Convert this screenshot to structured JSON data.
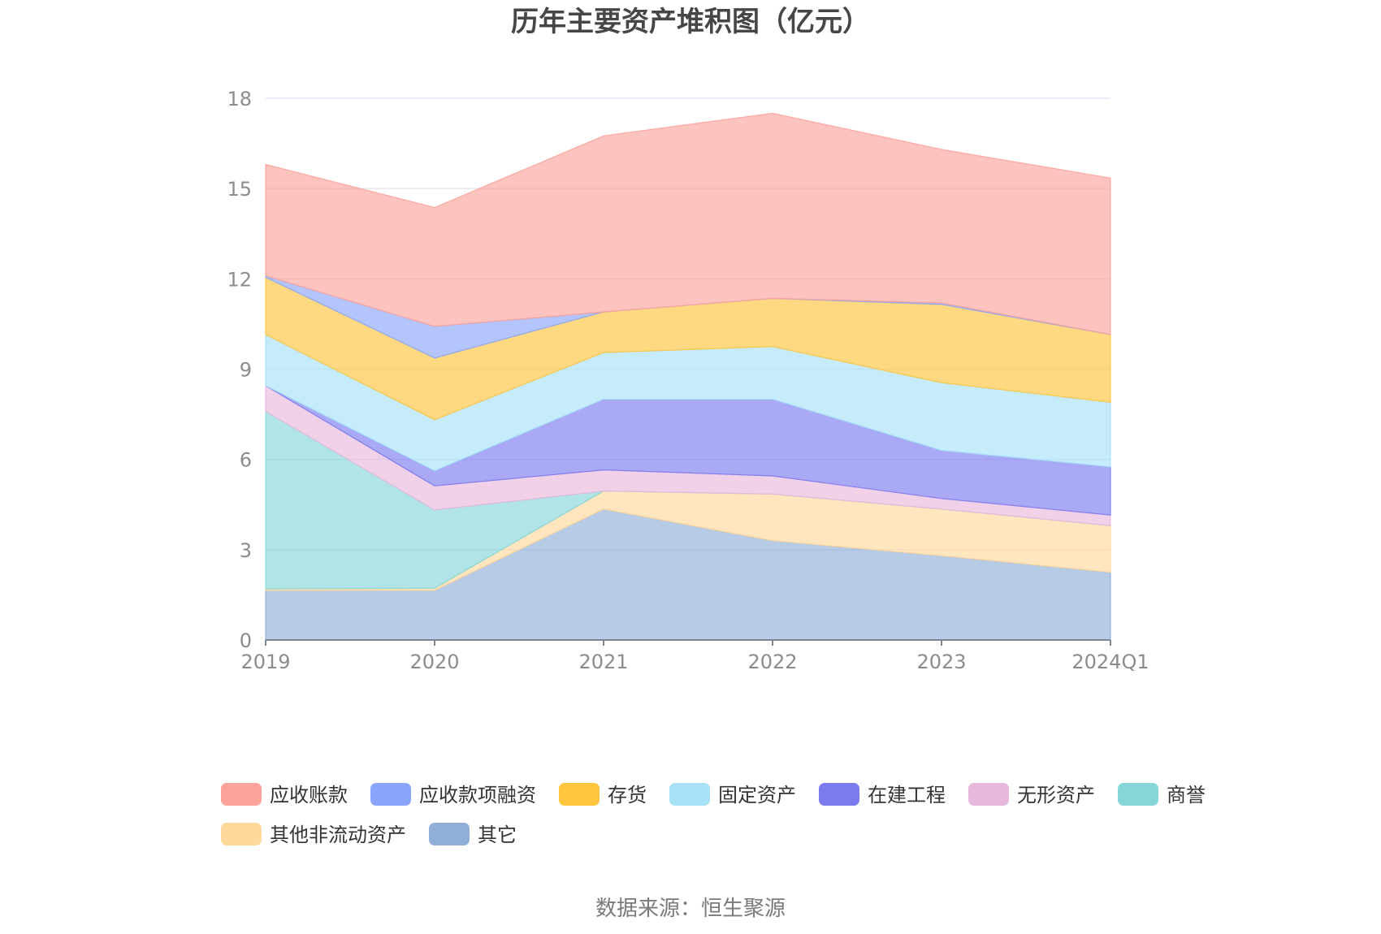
{
  "chart_data": {
    "type": "area",
    "stacked": true,
    "title": "历年主要资产堆积图（亿元）",
    "categories": [
      "2019",
      "2020",
      "2021",
      "2022",
      "2023",
      "2024Q1"
    ],
    "ylim": [
      0,
      18
    ],
    "yticks": [
      0,
      3,
      6,
      9,
      12,
      15,
      18
    ],
    "grid": true,
    "legend_position": "bottom",
    "series": [
      {
        "name": "其它",
        "color": "#91aed9",
        "values": [
          1.65,
          1.65,
          4.35,
          3.3,
          2.8,
          2.25
        ]
      },
      {
        "name": "其他非流动资产",
        "color": "#ffd89b",
        "values": [
          0.05,
          0.07,
          0.6,
          1.55,
          1.55,
          1.55
        ]
      },
      {
        "name": "商誉",
        "color": "#86d6d8",
        "values": [
          5.9,
          2.6,
          0.0,
          0.0,
          0.0,
          0.0
        ]
      },
      {
        "name": "无形资产",
        "color": "#e8b8dc",
        "values": [
          0.85,
          0.8,
          0.7,
          0.6,
          0.35,
          0.35
        ]
      },
      {
        "name": "在建工程",
        "color": "#7b7bf0",
        "values": [
          0.0,
          0.5,
          2.35,
          2.55,
          1.6,
          1.6
        ]
      },
      {
        "name": "固定资产",
        "color": "#a8e0f7",
        "values": [
          1.7,
          1.7,
          1.55,
          1.75,
          2.25,
          2.15
        ]
      },
      {
        "name": "存货",
        "color": "#ffc53d",
        "values": [
          1.9,
          2.05,
          1.35,
          1.6,
          2.6,
          2.25
        ]
      },
      {
        "name": "应收款项融资",
        "color": "#8aa6fb",
        "values": [
          0.05,
          1.05,
          0.0,
          0.0,
          0.05,
          0.0
        ]
      },
      {
        "name": "应收账款",
        "color": "#fca39b",
        "values": [
          3.7,
          3.95,
          5.85,
          6.15,
          5.1,
          5.2
        ]
      }
    ],
    "legend_order": [
      "应收账款",
      "应收款项融资",
      "存货",
      "固定资产",
      "在建工程",
      "无形资产",
      "商誉",
      "其他非流动资产",
      "其它"
    ]
  },
  "source": "数据来源：恒生聚源"
}
